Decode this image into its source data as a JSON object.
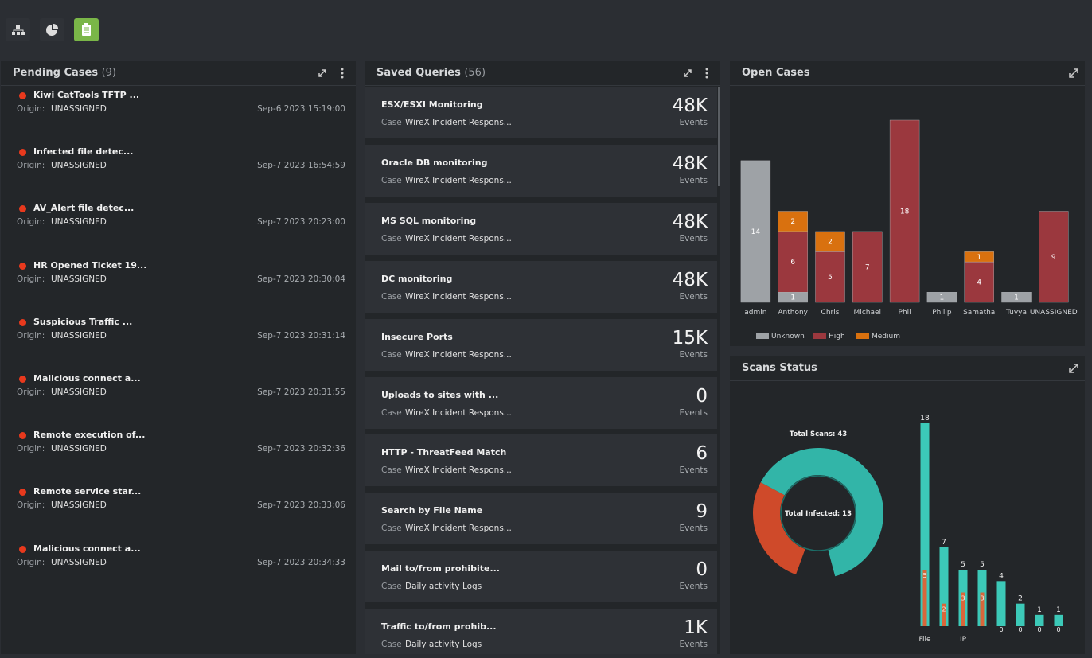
{
  "pending_cases": {
    "title": "Pending Cases",
    "count": "(9)",
    "origin_label": "Origin:",
    "items": [
      {
        "name": "Kiwi CatTools TFTP ...",
        "origin": "UNASSIGNED",
        "date": "Sep-6 2023 15:19:00"
      },
      {
        "name": "Infected file detec...",
        "origin": "UNASSIGNED",
        "date": "Sep-7 2023 16:54:59"
      },
      {
        "name": "AV_Alert file detec...",
        "origin": "UNASSIGNED",
        "date": "Sep-7 2023 20:23:00"
      },
      {
        "name": "HR Opened Ticket 19...",
        "origin": "UNASSIGNED",
        "date": "Sep-7 2023 20:30:04"
      },
      {
        "name": "Suspicious Traffic ...",
        "origin": "UNASSIGNED",
        "date": "Sep-7 2023 20:31:14"
      },
      {
        "name": "Malicious connect a...",
        "origin": "UNASSIGNED",
        "date": "Sep-7 2023 20:31:55"
      },
      {
        "name": "Remote execution of...",
        "origin": "UNASSIGNED",
        "date": "Sep-7 2023 20:32:36"
      },
      {
        "name": "Remote service star...",
        "origin": "UNASSIGNED",
        "date": "Sep-7 2023 20:33:06"
      },
      {
        "name": "Malicious connect a...",
        "origin": "UNASSIGNED",
        "date": "Sep-7 2023 20:34:33"
      }
    ]
  },
  "saved_queries": {
    "title": "Saved Queries",
    "count": "(56)",
    "case_label": "Case",
    "unit": "Events",
    "items": [
      {
        "name": "ESX/ESXI Monitoring",
        "case": "WireX Incident Respons...",
        "value": "48K"
      },
      {
        "name": "Oracle DB monitoring",
        "case": "WireX Incident Respons...",
        "value": "48K"
      },
      {
        "name": "MS SQL monitoring",
        "case": "WireX Incident Respons...",
        "value": "48K"
      },
      {
        "name": "DC monitoring",
        "case": "WireX Incident Respons...",
        "value": "48K"
      },
      {
        "name": "Insecure Ports",
        "case": "WireX Incident Respons...",
        "value": "15K"
      },
      {
        "name": "Uploads to sites with ...",
        "case": "WireX Incident Respons...",
        "value": "0"
      },
      {
        "name": "HTTP - ThreatFeed Match",
        "case": "WireX Incident Respons...",
        "value": "6"
      },
      {
        "name": "Search by File Name",
        "case": "WireX Incident Respons...",
        "value": "9"
      },
      {
        "name": "Mail to/from prohibite...",
        "case": "Daily activity Logs",
        "value": "0"
      },
      {
        "name": "Traffic to/from prohib...",
        "case": "Daily activity Logs",
        "value": "1K"
      }
    ]
  },
  "scans_status": {
    "title": "Scans Status"
  },
  "chart_data": [
    {
      "type": "bar",
      "stacked": true,
      "title": "Open Cases",
      "categories": [
        "admin",
        "Anthony",
        "Chris",
        "Michael",
        "Phil",
        "Philip",
        "Samatha",
        "Tuvya",
        "UNASSIGNED"
      ],
      "series": [
        {
          "name": "Unknown",
          "color": "#9ea2a6",
          "values": [
            14,
            1,
            null,
            null,
            null,
            1,
            null,
            1,
            null
          ]
        },
        {
          "name": "High",
          "color": "#9b383e",
          "values": [
            null,
            6,
            5,
            7,
            18,
            null,
            4,
            null,
            9
          ]
        },
        {
          "name": "Medium",
          "color": "#d9710f",
          "values": [
            null,
            2,
            2,
            null,
            null,
            null,
            1,
            null,
            null
          ]
        }
      ],
      "legend": "bottom-left"
    },
    {
      "type": "donut",
      "title": "Total Scans: 43",
      "center_label": "Total Infected: 13",
      "values": [
        13,
        30
      ],
      "colors": [
        "#cf4a2a",
        "#32b5a8"
      ]
    },
    {
      "type": "bar",
      "overlay": true,
      "categories": [
        "File",
        null,
        "IP",
        null,
        null,
        null,
        null,
        null
      ],
      "series": [
        {
          "color": "#3cc9b8",
          "values": [
            18,
            7,
            5,
            5,
            4,
            2,
            1,
            1
          ]
        },
        {
          "color": "#d9663a",
          "values": [
            5,
            2,
            3,
            3,
            0,
            0,
            0,
            0
          ]
        }
      ]
    }
  ]
}
